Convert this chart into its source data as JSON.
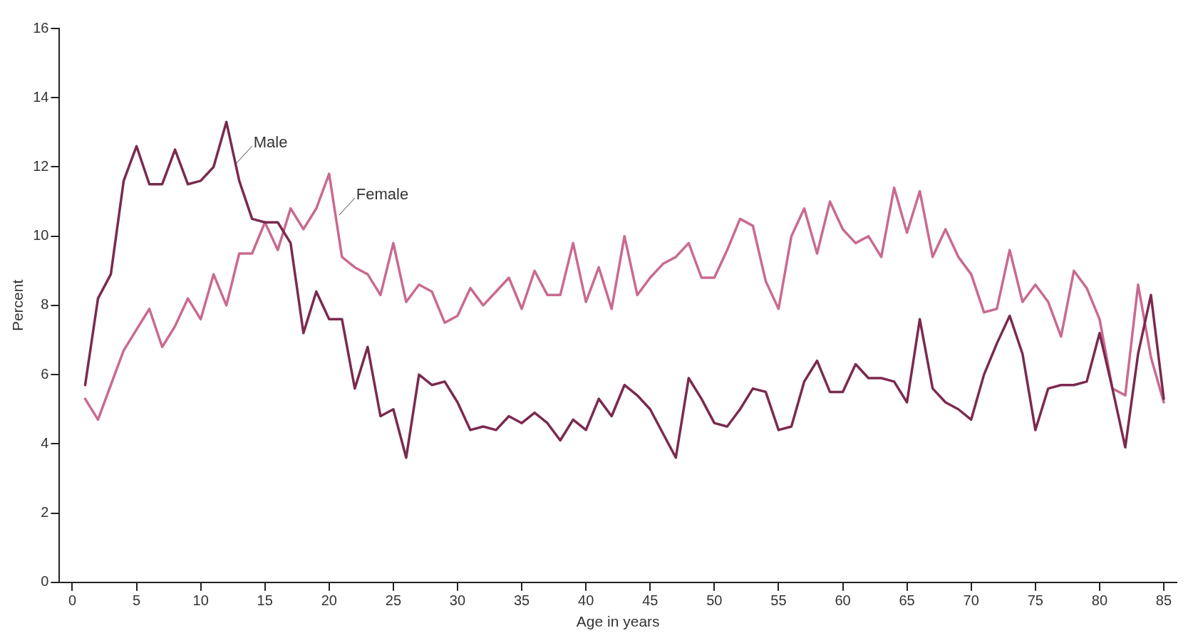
{
  "chart_data": {
    "type": "line",
    "xlabel": "Age in years",
    "ylabel": "Percent",
    "x": [
      1,
      2,
      3,
      4,
      5,
      6,
      7,
      8,
      9,
      10,
      11,
      12,
      13,
      14,
      15,
      16,
      17,
      18,
      19,
      20,
      21,
      22,
      23,
      24,
      25,
      26,
      27,
      28,
      29,
      30,
      31,
      32,
      33,
      34,
      35,
      36,
      37,
      38,
      39,
      40,
      41,
      42,
      43,
      44,
      45,
      46,
      47,
      48,
      49,
      50,
      51,
      52,
      53,
      54,
      55,
      56,
      57,
      58,
      59,
      60,
      61,
      62,
      63,
      64,
      65,
      66,
      67,
      68,
      69,
      70,
      71,
      72,
      73,
      74,
      75,
      76,
      77,
      78,
      79,
      80,
      81,
      82,
      83,
      84,
      85
    ],
    "series": [
      {
        "name": "Male",
        "color": "#7b2a4f",
        "values": [
          5.7,
          8.2,
          8.9,
          11.6,
          12.6,
          11.5,
          11.5,
          12.5,
          11.5,
          11.6,
          12.0,
          13.3,
          11.6,
          10.5,
          10.4,
          10.4,
          9.8,
          7.2,
          8.4,
          7.6,
          7.6,
          5.6,
          6.8,
          4.8,
          5.0,
          3.6,
          6.0,
          5.7,
          5.8,
          5.2,
          4.4,
          4.5,
          4.4,
          4.8,
          4.6,
          4.9,
          4.6,
          4.1,
          4.7,
          4.4,
          5.3,
          4.8,
          5.7,
          5.4,
          5.0,
          4.3,
          3.6,
          5.9,
          5.3,
          4.6,
          4.5,
          5.0,
          5.6,
          5.5,
          4.4,
          4.5,
          5.8,
          6.4,
          5.5,
          5.5,
          6.3,
          5.9,
          5.9,
          5.8,
          5.2,
          7.6,
          5.6,
          5.2,
          5.0,
          4.7,
          6.0,
          6.9,
          7.7,
          6.6,
          4.4,
          5.6,
          5.7,
          5.7,
          5.8,
          7.2,
          5.6,
          3.9,
          6.6,
          8.3,
          5.3
        ]
      },
      {
        "name": "Female",
        "color": "#c96a92",
        "values": [
          5.3,
          4.7,
          5.7,
          6.7,
          7.3,
          7.9,
          6.8,
          7.4,
          8.2,
          7.6,
          8.9,
          8.0,
          9.5,
          9.5,
          10.4,
          9.6,
          10.8,
          10.2,
          10.8,
          11.8,
          9.4,
          9.1,
          8.9,
          8.3,
          9.8,
          8.1,
          8.6,
          8.4,
          7.5,
          7.7,
          8.5,
          8.0,
          8.4,
          8.8,
          7.9,
          9.0,
          8.3,
          8.3,
          9.8,
          8.1,
          9.1,
          7.9,
          10.0,
          8.3,
          8.8,
          9.2,
          9.4,
          9.8,
          8.8,
          8.8,
          9.6,
          10.5,
          10.3,
          8.7,
          7.9,
          10.0,
          10.8,
          9.5,
          11.0,
          10.2,
          9.8,
          10.0,
          9.4,
          11.4,
          10.1,
          11.3,
          9.4,
          10.2,
          9.4,
          8.9,
          7.8,
          7.9,
          9.6,
          8.1,
          8.6,
          8.1,
          7.1,
          9.0,
          8.5,
          7.6,
          5.6,
          5.4,
          8.6,
          6.5,
          5.2
        ]
      }
    ],
    "xlim": [
      -1,
      86
    ],
    "xticks": [
      0,
      5,
      10,
      15,
      20,
      25,
      30,
      35,
      40,
      45,
      50,
      55,
      60,
      65,
      70,
      75,
      80,
      85
    ],
    "ylim": [
      0,
      16
    ],
    "yticks": [
      0,
      2,
      4,
      6,
      8,
      10,
      12,
      14,
      16
    ],
    "grid": false,
    "legend": false,
    "marker": "none",
    "line_style": "solid"
  }
}
